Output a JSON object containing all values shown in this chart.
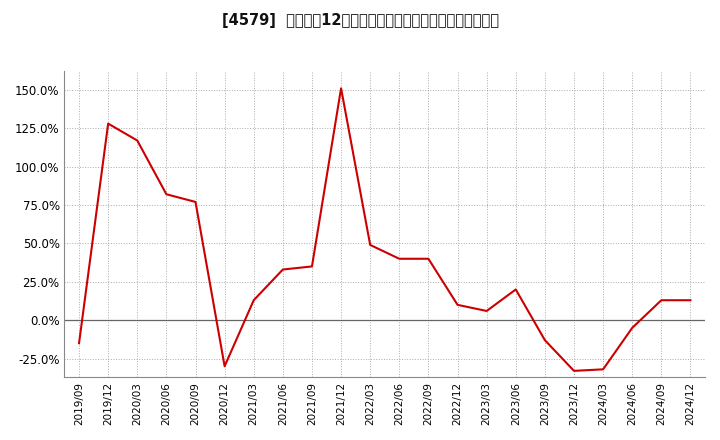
{
  "title": "[4579]  売上高の12か月移動合計の対前年同期増減率の推移",
  "line_color": "#cc0000",
  "background_color": "#ffffff",
  "grid_color": "#aaaaaa",
  "zero_line_color": "#666666",
  "yticks": [
    -0.25,
    0.0,
    0.25,
    0.5,
    0.75,
    1.0,
    1.25,
    1.5
  ],
  "ylim": [
    -0.37,
    1.62
  ],
  "dates": [
    "2019/09",
    "2019/12",
    "2020/03",
    "2020/06",
    "2020/09",
    "2020/12",
    "2021/03",
    "2021/06",
    "2021/09",
    "2021/12",
    "2022/03",
    "2022/06",
    "2022/09",
    "2022/12",
    "2023/03",
    "2023/06",
    "2023/09",
    "2023/12",
    "2024/03",
    "2024/06",
    "2024/09",
    "2024/12"
  ],
  "values": [
    -0.15,
    1.28,
    1.17,
    0.82,
    0.77,
    -0.3,
    0.13,
    0.33,
    0.35,
    1.51,
    0.49,
    0.4,
    0.4,
    0.1,
    0.06,
    0.2,
    -0.13,
    -0.33,
    -0.32,
    -0.05,
    0.13,
    0.13
  ]
}
